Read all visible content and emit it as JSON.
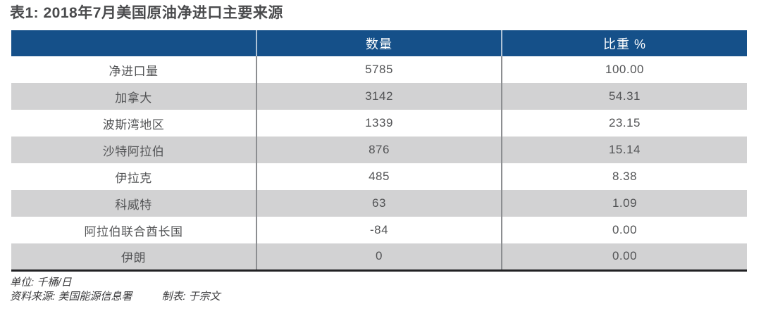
{
  "title": "表1: 2018年7月美国原油净进口主要来源",
  "table": {
    "columns": [
      "",
      "数量",
      "比重 %"
    ],
    "rows": [
      {
        "label": "净进口量",
        "quantity": "5785",
        "share": "100.00"
      },
      {
        "label": "加拿大",
        "quantity": "3142",
        "share": "54.31"
      },
      {
        "label": "波斯湾地区",
        "quantity": "1339",
        "share": "23.15"
      },
      {
        "label": "沙特阿拉伯",
        "quantity": "876",
        "share": "15.14"
      },
      {
        "label": "伊拉克",
        "quantity": "485",
        "share": "8.38"
      },
      {
        "label": "科威特",
        "quantity": "63",
        "share": "1.09"
      },
      {
        "label": "阿拉伯联合酋长国",
        "quantity": "-84",
        "share": "0.00"
      },
      {
        "label": "伊朗",
        "quantity": "0",
        "share": "0.00"
      }
    ]
  },
  "footer": {
    "unit": "单位: 千桶/日",
    "source": "资料来源: 美国能源信息署",
    "tabulator": "制表: 于宗文"
  },
  "colors": {
    "header_bg": "#155089",
    "header_text": "#ffffff",
    "row_alt_bg": "#d2d2d3",
    "body_text": "#535456",
    "divider": "#8c8e91",
    "bottom_border": "#212123",
    "title_text": "#4a4b4d"
  },
  "chart_data": {
    "type": "table",
    "title": "表1: 2018年7月美国原油净进口主要来源",
    "columns": [
      "",
      "数量",
      "比重 %"
    ],
    "rows": [
      [
        "净进口量",
        5785,
        100.0
      ],
      [
        "加拿大",
        3142,
        54.31
      ],
      [
        "波斯湾地区",
        1339,
        23.15
      ],
      [
        "沙特阿拉伯",
        876,
        15.14
      ],
      [
        "伊拉克",
        485,
        8.38
      ],
      [
        "科威特",
        63,
        1.09
      ],
      [
        "阿拉伯联合酋长国",
        -84,
        0.0
      ],
      [
        "伊朗",
        0,
        0.0
      ]
    ],
    "unit": "千桶/日",
    "source": "美国能源信息署",
    "tabulated_by": "于宗文"
  }
}
